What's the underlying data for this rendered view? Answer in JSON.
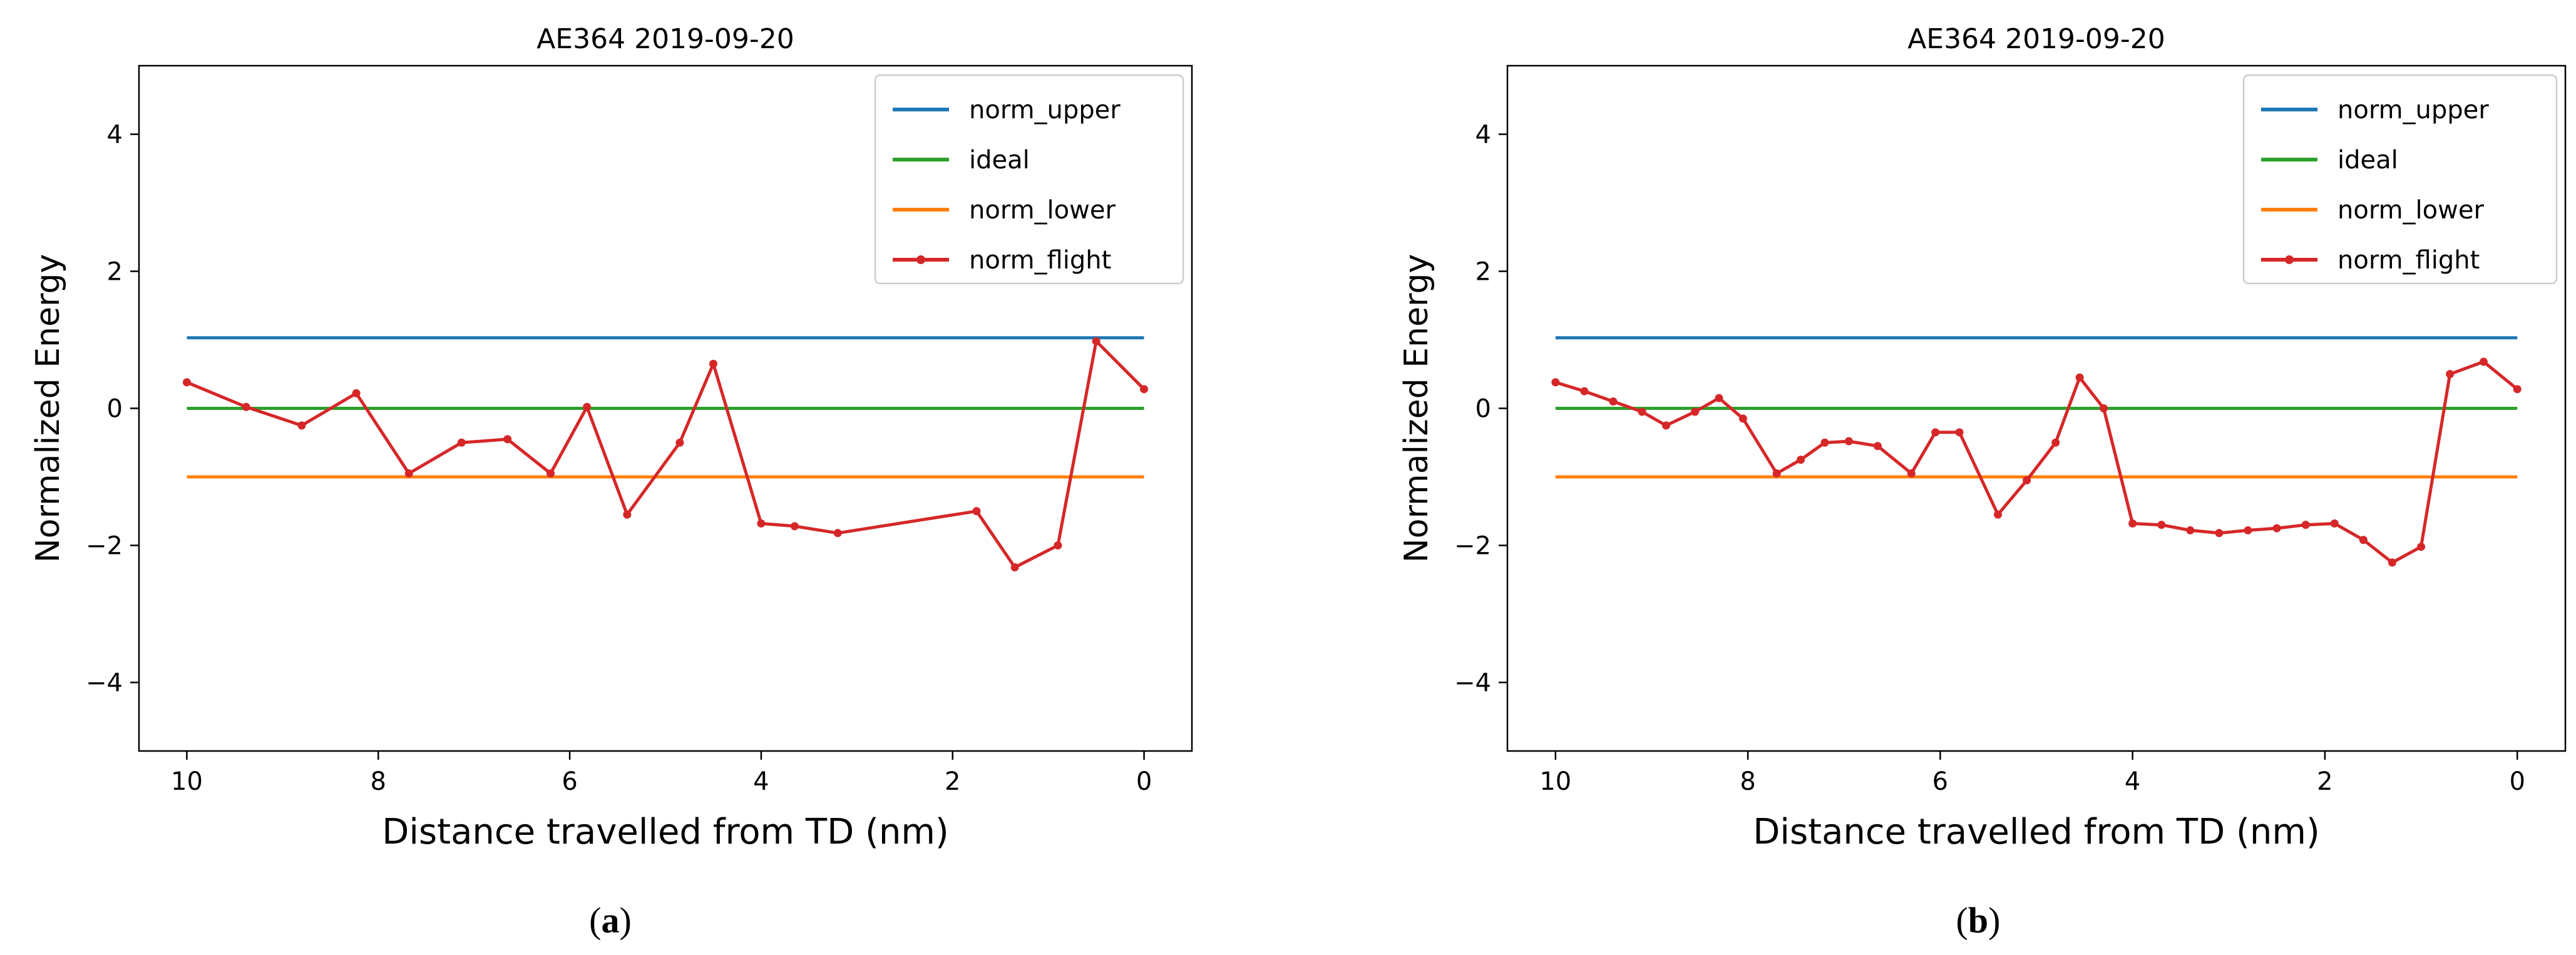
{
  "figure": {
    "panels": [
      {
        "caption_letter": "a"
      },
      {
        "caption_letter": "b"
      }
    ]
  },
  "chart_data": [
    {
      "type": "line",
      "title": "AE364 2019-09-20",
      "xlabel": "Distance travelled from TD (nm)",
      "ylabel": "Normalized Energy",
      "xlim": [
        10.5,
        -0.5
      ],
      "ylim": [
        -5,
        5
      ],
      "x_inverted": true,
      "xticks": [
        10,
        8,
        6,
        4,
        2,
        0
      ],
      "yticks": [
        4,
        2,
        0,
        -2,
        -4
      ],
      "grid": false,
      "legend_position": "top-right",
      "series": [
        {
          "name": "norm_upper",
          "color": "#1f77b4",
          "marker": "none",
          "x": [
            10,
            0
          ],
          "y": [
            1.03,
            1.03
          ]
        },
        {
          "name": "ideal",
          "color": "#2ca02c",
          "marker": "none",
          "x": [
            10,
            0
          ],
          "y": [
            0.0,
            0.0
          ]
        },
        {
          "name": "norm_lower",
          "color": "#ff7f0e",
          "marker": "none",
          "x": [
            10,
            0
          ],
          "y": [
            -1.0,
            -1.0
          ]
        },
        {
          "name": "norm_flight",
          "color": "#d62728",
          "marker": "dot",
          "x": [
            10.0,
            9.38,
            8.8,
            8.23,
            7.68,
            7.13,
            6.65,
            6.2,
            5.82,
            5.4,
            4.85,
            4.5,
            4.0,
            3.65,
            3.2,
            1.75,
            1.35,
            0.9,
            0.5,
            0.0
          ],
          "y": [
            0.38,
            0.02,
            -0.25,
            0.22,
            -0.95,
            -0.5,
            -0.45,
            -0.95,
            0.02,
            -1.55,
            -0.5,
            0.65,
            -1.68,
            -1.72,
            -1.82,
            -1.5,
            -2.32,
            -2.0,
            0.98,
            0.28
          ]
        }
      ]
    },
    {
      "type": "line",
      "title": "AE364 2019-09-20",
      "xlabel": "Distance travelled from TD (nm)",
      "ylabel": "Normalized Energy",
      "xlim": [
        10.5,
        -0.5
      ],
      "ylim": [
        -5,
        5
      ],
      "x_inverted": true,
      "xticks": [
        10,
        8,
        6,
        4,
        2,
        0
      ],
      "yticks": [
        4,
        2,
        0,
        -2,
        -4
      ],
      "grid": false,
      "legend_position": "top-right",
      "series": [
        {
          "name": "norm_upper",
          "color": "#1f77b4",
          "marker": "none",
          "x": [
            10,
            0
          ],
          "y": [
            1.03,
            1.03
          ]
        },
        {
          "name": "ideal",
          "color": "#2ca02c",
          "marker": "none",
          "x": [
            10,
            0
          ],
          "y": [
            0.0,
            0.0
          ]
        },
        {
          "name": "norm_lower",
          "color": "#ff7f0e",
          "marker": "none",
          "x": [
            10,
            0
          ],
          "y": [
            -1.0,
            -1.0
          ]
        },
        {
          "name": "norm_flight",
          "color": "#d62728",
          "marker": "dot",
          "x": [
            10.0,
            9.7,
            9.4,
            9.1,
            8.85,
            8.55,
            8.3,
            8.05,
            7.7,
            7.45,
            7.2,
            6.95,
            6.65,
            6.3,
            6.05,
            5.8,
            5.4,
            5.1,
            4.8,
            4.55,
            4.3,
            4.0,
            3.7,
            3.4,
            3.1,
            2.8,
            2.5,
            2.2,
            1.9,
            1.6,
            1.3,
            1.0,
            0.7,
            0.35,
            0.0
          ],
          "y": [
            0.38,
            0.25,
            0.1,
            -0.05,
            -0.25,
            -0.05,
            0.15,
            -0.15,
            -0.95,
            -0.75,
            -0.5,
            -0.48,
            -0.55,
            -0.95,
            -0.35,
            -0.35,
            -1.55,
            -1.05,
            -0.5,
            0.45,
            0.0,
            -1.68,
            -1.7,
            -1.78,
            -1.82,
            -1.78,
            -1.75,
            -1.7,
            -1.68,
            -1.92,
            -2.25,
            -2.02,
            0.5,
            0.68,
            0.28
          ]
        }
      ]
    }
  ]
}
